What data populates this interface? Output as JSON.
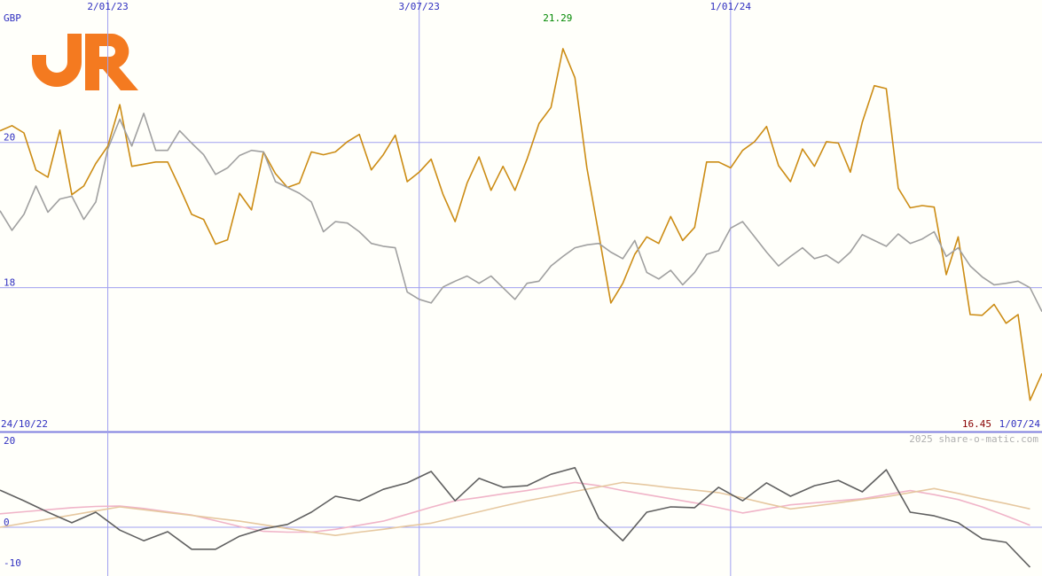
{
  "watermark": "2025 share-o-matic.com",
  "chart_data": [
    {
      "type": "line",
      "ylabel": "GBP",
      "x": [
        1,
        2,
        3,
        4,
        5,
        6,
        7,
        8,
        9,
        10,
        11,
        12,
        13,
        14,
        15,
        16,
        17,
        18,
        19,
        20,
        21,
        22,
        23,
        24,
        25,
        26,
        27,
        28,
        29,
        30,
        31,
        32,
        33,
        34,
        35,
        36,
        37,
        38,
        39,
        40,
        41,
        42,
        43,
        44,
        45,
        46,
        47,
        48,
        49,
        50,
        51,
        52,
        53,
        54,
        55,
        56,
        57,
        58,
        59,
        60,
        61,
        62,
        63,
        64,
        65,
        66,
        67,
        68,
        69,
        70,
        71,
        72,
        73,
        74,
        75,
        76,
        77,
        78,
        79,
        80,
        81,
        82,
        83,
        84,
        85,
        86,
        87,
        88
      ],
      "series": [
        {
          "color": "#cc8c14",
          "values": [
            20.16,
            20.23,
            20.13,
            19.62,
            19.52,
            20.17,
            19.28,
            19.4,
            19.71,
            19.95,
            20.52,
            19.67,
            19.7,
            19.73,
            19.73,
            19.38,
            19.01,
            18.94,
            18.6,
            18.66,
            19.3,
            19.07,
            19.87,
            19.57,
            19.38,
            19.44,
            19.87,
            19.83,
            19.87,
            20.01,
            20.11,
            19.62,
            19.83,
            20.1,
            19.46,
            19.59,
            19.77,
            19.28,
            18.91,
            19.44,
            19.8,
            19.34,
            19.67,
            19.34,
            19.77,
            20.26,
            20.48,
            21.29,
            20.89,
            19.65,
            18.73,
            17.79,
            18.06,
            18.46,
            18.7,
            18.61,
            18.98,
            18.65,
            18.83,
            19.73,
            19.73,
            19.65,
            19.89,
            20.01,
            20.22,
            19.68,
            19.46,
            19.91,
            19.67,
            20.01,
            19.99,
            19.59,
            20.28,
            20.78,
            20.74,
            19.37,
            19.1,
            19.13,
            19.11,
            18.18,
            18.7,
            17.63,
            17.62,
            17.77,
            17.51,
            17.63,
            16.45,
            16.82
          ]
        },
        {
          "color": "#a0a0a0",
          "values": [
            19.06,
            18.79,
            19.01,
            19.4,
            19.04,
            19.22,
            19.26,
            18.94,
            19.18,
            19.91,
            20.32,
            19.95,
            20.4,
            19.89,
            19.89,
            20.16,
            19.99,
            19.83,
            19.56,
            19.65,
            19.82,
            19.89,
            19.87,
            19.46,
            19.38,
            19.3,
            19.18,
            18.77,
            18.91,
            18.89,
            18.77,
            18.61,
            18.57,
            18.55,
            17.94,
            17.84,
            17.79,
            18.01,
            18.09,
            18.16,
            18.06,
            18.16,
            18.0,
            17.84,
            18.06,
            18.09,
            18.3,
            18.43,
            18.55,
            18.59,
            18.61,
            18.49,
            18.4,
            18.65,
            18.21,
            18.12,
            18.24,
            18.04,
            18.21,
            18.46,
            18.51,
            18.82,
            18.91,
            18.7,
            18.49,
            18.3,
            18.43,
            18.55,
            18.4,
            18.45,
            18.34,
            18.49,
            18.73,
            18.65,
            18.57,
            18.74,
            18.61,
            18.67,
            18.77,
            18.43,
            18.55,
            18.3,
            18.15,
            18.04,
            18.06,
            18.09,
            18.0,
            17.67
          ]
        }
      ],
      "xlim": [
        1,
        88
      ],
      "xticks": [
        {
          "value": 1,
          "label": "24/10/22"
        },
        {
          "value": 10,
          "label": "2/01/23"
        },
        {
          "value": 36,
          "label": "3/07/23"
        },
        {
          "value": 62,
          "label": "1/01/24"
        },
        {
          "value": 88,
          "label": "1/07/24"
        }
      ],
      "ylim": [
        16.02,
        21.96
      ],
      "yticks": [
        18,
        20
      ],
      "grid": true,
      "max_color": "#008800",
      "min_color": "#880000"
    },
    {
      "type": "line",
      "x": [
        1,
        3,
        5,
        7,
        9,
        11,
        13,
        15,
        17,
        19,
        21,
        23,
        25,
        27,
        29,
        31,
        33,
        35,
        37,
        39,
        41,
        43,
        45,
        47,
        49,
        51,
        53,
        55,
        57,
        59,
        61,
        63,
        65,
        67,
        69,
        71,
        73,
        75,
        77,
        79,
        81,
        83,
        85,
        87
      ],
      "series": [
        {
          "color": "#f0b4c8",
          "values": [
            3.3,
            3.8,
            4.3,
            4.8,
            5.1,
            5.2,
            4.6,
            3.8,
            3.0,
            1.6,
            0.2,
            -1.0,
            -1.2,
            -1.2,
            -0.5,
            0.5,
            1.5,
            3.2,
            4.9,
            6.5,
            7.3,
            8.2,
            9.0,
            10.0,
            11.0,
            10.2,
            9.0,
            8.0,
            7.0,
            6.0,
            4.8,
            3.5,
            4.5,
            5.5,
            6.0,
            6.5,
            7.0,
            8.0,
            9.0,
            8.0,
            6.8,
            5.0,
            2.8,
            0.5
          ]
        },
        {
          "color": "#e6c8a0",
          "values": [
            0.0,
            1.0,
            2.0,
            3.0,
            4.0,
            5.0,
            4.3,
            3.6,
            2.9,
            2.2,
            1.5,
            0.6,
            -0.3,
            -1.2,
            -2.0,
            -1.2,
            -0.5,
            0.3,
            1.0,
            2.4,
            3.8,
            5.2,
            6.5,
            7.6,
            8.8,
            9.9,
            11.0,
            10.4,
            9.7,
            9.1,
            8.5,
            7.2,
            5.8,
            4.5,
            5.2,
            6.0,
            6.8,
            7.5,
            8.5,
            9.5,
            8.3,
            7.0,
            5.8,
            4.5
          ]
        },
        {
          "color": "#606060",
          "values": [
            9.1,
            6.5,
            3.7,
            1.1,
            3.7,
            -0.7,
            -3.3,
            -1.1,
            -5.4,
            -5.4,
            -2.2,
            -0.4,
            0.7,
            3.7,
            7.6,
            6.5,
            9.3,
            10.9,
            13.7,
            6.5,
            12.0,
            9.8,
            10.2,
            13.0,
            14.6,
            2.2,
            -3.3,
            3.7,
            5.0,
            4.8,
            9.8,
            6.5,
            10.9,
            7.6,
            10.2,
            11.5,
            8.7,
            14.1,
            3.7,
            2.8,
            1.1,
            -2.8,
            -3.7,
            -9.8
          ]
        }
      ],
      "xlim": [
        1,
        88
      ],
      "ylim": [
        -11.96,
        23.26
      ],
      "yticks": [
        20,
        0,
        -10
      ],
      "grid": false,
      "zero_line": true
    }
  ]
}
